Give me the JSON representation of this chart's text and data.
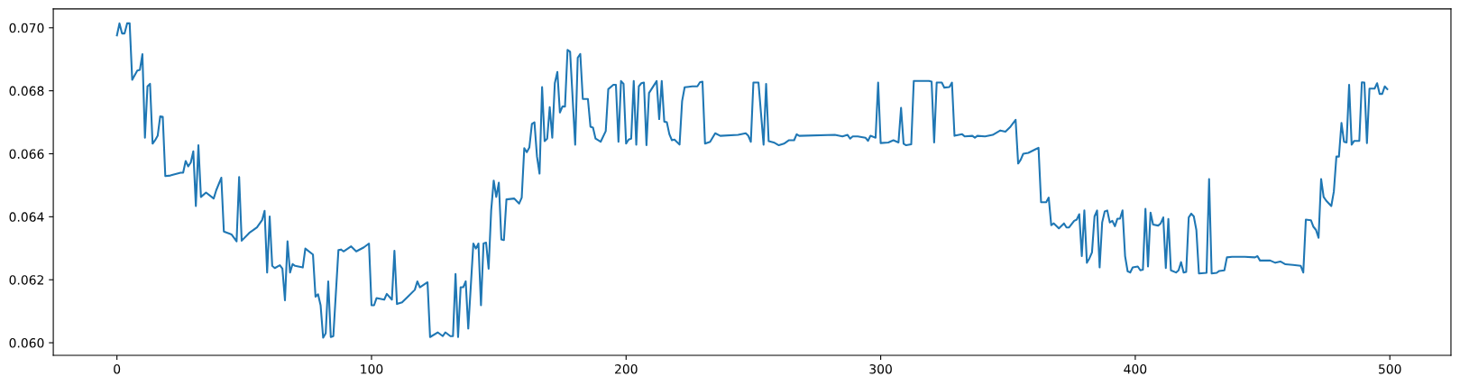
{
  "chart_data": {
    "type": "line",
    "x": [
      0,
      1,
      2,
      3,
      4,
      5,
      6,
      8,
      9,
      10,
      11,
      12,
      13,
      14,
      15,
      16,
      17,
      18,
      19,
      21,
      25,
      26,
      27,
      28,
      29,
      30,
      31,
      32,
      33,
      35,
      38,
      39,
      41,
      42,
      45,
      47,
      48,
      49,
      52,
      55,
      57,
      58,
      59,
      60,
      61,
      62,
      64,
      65,
      66,
      67,
      68,
      69,
      70,
      73,
      74,
      77,
      78,
      79,
      80,
      81,
      82,
      83,
      84,
      85,
      87,
      88,
      89,
      92,
      94,
      97,
      99,
      100,
      101,
      102,
      105,
      106,
      108,
      109,
      110,
      112,
      114,
      117,
      118,
      119,
      122,
      123,
      126,
      128,
      129,
      131,
      132,
      133,
      134,
      135,
      136,
      137,
      138,
      140,
      141,
      142,
      143,
      144,
      145,
      146,
      147,
      148,
      149,
      150,
      151,
      152,
      153,
      156,
      158,
      159,
      160,
      161,
      162,
      163,
      164,
      165,
      166,
      167,
      168,
      169,
      170,
      171,
      172,
      173,
      174,
      175,
      176,
      177,
      178,
      180,
      181,
      182,
      183,
      185,
      186,
      187,
      188,
      190,
      192,
      193,
      195,
      196,
      197,
      198,
      199,
      200,
      201,
      202,
      203,
      204,
      205,
      206,
      207,
      208,
      209,
      212,
      213,
      214,
      215,
      216,
      217,
      218,
      219,
      221,
      222,
      223,
      226,
      228,
      229,
      230,
      231,
      233,
      235,
      237,
      244,
      247,
      248,
      249,
      250,
      252,
      254,
      255,
      256,
      258,
      260,
      262,
      264,
      266,
      267,
      268,
      282,
      285,
      287,
      288,
      289,
      291,
      294,
      295,
      296,
      298,
      299,
      300,
      303,
      305,
      307,
      308,
      309,
      310,
      312,
      313,
      319,
      320,
      321,
      322,
      324,
      325,
      327,
      328,
      329,
      332,
      333,
      336,
      337,
      338,
      341,
      344,
      347,
      349,
      351,
      353,
      354,
      355,
      356,
      358,
      361,
      362,
      363,
      365,
      366,
      367,
      368,
      370,
      372,
      373,
      374,
      376,
      377,
      378,
      379,
      380,
      381,
      382,
      383,
      384,
      385,
      386,
      387,
      388,
      389,
      390,
      391,
      392,
      393,
      394,
      395,
      396,
      397,
      398,
      399,
      401,
      402,
      403,
      404,
      405,
      406,
      407,
      409,
      410,
      411,
      412,
      413,
      414,
      416,
      417,
      418,
      419,
      420,
      421,
      422,
      423,
      424,
      425,
      428,
      429,
      430,
      432,
      433,
      435,
      436,
      438,
      443,
      447,
      448,
      449,
      451,
      453,
      455,
      457,
      459,
      462,
      465,
      466,
      467,
      469,
      470,
      471,
      472,
      473,
      474,
      475,
      477,
      478,
      479,
      480,
      481,
      482,
      483,
      484,
      485,
      486,
      488,
      489,
      490,
      491,
      492,
      494,
      495,
      496,
      497,
      498,
      499
    ],
    "series": [
      {
        "color": "#1f77b4",
        "values": [
          0.06976,
          0.07014,
          0.06982,
          0.06982,
          0.07014,
          0.07014,
          0.06835,
          0.06864,
          0.06866,
          0.06916,
          0.06651,
          0.06814,
          0.06822,
          0.06632,
          0.06643,
          0.06657,
          0.06719,
          0.06717,
          0.06529,
          0.06531,
          0.0654,
          0.0654,
          0.06577,
          0.0656,
          0.06572,
          0.06608,
          0.06434,
          0.06627,
          0.06463,
          0.06477,
          0.06458,
          0.06484,
          0.06524,
          0.06353,
          0.06344,
          0.06322,
          0.06526,
          0.06324,
          0.06349,
          0.06366,
          0.06389,
          0.06419,
          0.06223,
          0.06401,
          0.06244,
          0.06237,
          0.06246,
          0.06235,
          0.06135,
          0.06322,
          0.06223,
          0.0625,
          0.06244,
          0.06239,
          0.06299,
          0.0628,
          0.06146,
          0.06154,
          0.06119,
          0.06016,
          0.0603,
          0.06195,
          0.06018,
          0.06021,
          0.06294,
          0.06296,
          0.0629,
          0.06306,
          0.0629,
          0.06303,
          0.06315,
          0.06119,
          0.06119,
          0.06142,
          0.06137,
          0.06155,
          0.06137,
          0.06292,
          0.06123,
          0.06128,
          0.06144,
          0.06168,
          0.06195,
          0.06176,
          0.06192,
          0.06018,
          0.06033,
          0.06021,
          0.06033,
          0.06021,
          0.06021,
          0.06218,
          0.06018,
          0.06176,
          0.06176,
          0.06195,
          0.06045,
          0.06315,
          0.06299,
          0.06315,
          0.06119,
          0.06315,
          0.06318,
          0.06235,
          0.0642,
          0.06515,
          0.06463,
          0.06508,
          0.06328,
          0.06326,
          0.06455,
          0.06458,
          0.06442,
          0.06461,
          0.06618,
          0.06605,
          0.0662,
          0.06695,
          0.067,
          0.06591,
          0.06537,
          0.06812,
          0.0664,
          0.06648,
          0.06748,
          0.06651,
          0.06824,
          0.0686,
          0.06731,
          0.0675,
          0.0675,
          0.0693,
          0.06924,
          0.06629,
          0.06905,
          0.06917,
          0.06774,
          0.06774,
          0.06686,
          0.06683,
          0.06648,
          0.06638,
          0.06672,
          0.06805,
          0.06819,
          0.06819,
          0.06638,
          0.06831,
          0.06822,
          0.06632,
          0.06645,
          0.06648,
          0.06831,
          0.06629,
          0.06814,
          0.06824,
          0.06826,
          0.06627,
          0.06793,
          0.06831,
          0.0671,
          0.06831,
          0.06702,
          0.067,
          0.06662,
          0.06643,
          0.06645,
          0.06629,
          0.06767,
          0.06811,
          0.06814,
          0.06814,
          0.06827,
          0.06829,
          0.06632,
          0.06638,
          0.06665,
          0.06657,
          0.0666,
          0.06665,
          0.06657,
          0.06638,
          0.06826,
          0.06826,
          0.06629,
          0.06822,
          0.0664,
          0.06636,
          0.06627,
          0.06632,
          0.06643,
          0.06643,
          0.06662,
          0.06657,
          0.0666,
          0.06655,
          0.0666,
          0.06648,
          0.06655,
          0.06655,
          0.06651,
          0.06641,
          0.06657,
          0.06651,
          0.06826,
          0.06634,
          0.06636,
          0.06643,
          0.06636,
          0.06746,
          0.06632,
          0.06627,
          0.0663,
          0.06831,
          0.06831,
          0.06829,
          0.06636,
          0.06826,
          0.06826,
          0.0681,
          0.06812,
          0.06826,
          0.06657,
          0.06662,
          0.06655,
          0.06657,
          0.06651,
          0.06657,
          0.06655,
          0.0666,
          0.06674,
          0.0667,
          0.06686,
          0.06708,
          0.06569,
          0.06581,
          0.066,
          0.06603,
          0.06615,
          0.06619,
          0.06446,
          0.06446,
          0.06461,
          0.06373,
          0.06379,
          0.06363,
          0.06379,
          0.06366,
          0.06366,
          0.06387,
          0.06391,
          0.06408,
          0.06275,
          0.0642,
          0.06254,
          0.06268,
          0.06287,
          0.06401,
          0.0642,
          0.06239,
          0.06382,
          0.06417,
          0.0642,
          0.06382,
          0.06387,
          0.0637,
          0.06394,
          0.06394,
          0.0642,
          0.06275,
          0.06227,
          0.06223,
          0.06239,
          0.06242,
          0.0623,
          0.06232,
          0.06425,
          0.06242,
          0.06413,
          0.06375,
          0.06372,
          0.06379,
          0.06398,
          0.06237,
          0.06393,
          0.0623,
          0.06223,
          0.0623,
          0.06256,
          0.06223,
          0.06225,
          0.06398,
          0.0641,
          0.06401,
          0.06358,
          0.0622,
          0.06222,
          0.0652,
          0.0622,
          0.06222,
          0.06228,
          0.0623,
          0.06271,
          0.06273,
          0.06273,
          0.06271,
          0.06275,
          0.06261,
          0.06261,
          0.06261,
          0.06254,
          0.06258,
          0.06249,
          0.06247,
          0.06244,
          0.06223,
          0.06391,
          0.06389,
          0.06368,
          0.06358,
          0.06333,
          0.0652,
          0.06463,
          0.06451,
          0.06434,
          0.0648,
          0.06591,
          0.06591,
          0.06698,
          0.06638,
          0.06636,
          0.06819,
          0.06629,
          0.06641,
          0.06641,
          0.06827,
          0.06826,
          0.06634,
          0.06807,
          0.06807,
          0.06824,
          0.0679,
          0.0679,
          0.06814,
          0.06805
        ]
      }
    ],
    "xlim": [
      -25,
      524
    ],
    "ylim": [
      0.0596,
      0.0706
    ],
    "xticks": [
      0,
      100,
      200,
      300,
      400,
      500
    ],
    "yticks": [
      {
        "value": 0.06,
        "label": "0.060"
      },
      {
        "value": 0.062,
        "label": "0.062"
      },
      {
        "value": 0.064,
        "label": "0.064"
      },
      {
        "value": 0.066,
        "label": "0.066"
      },
      {
        "value": 0.068,
        "label": "0.068"
      },
      {
        "value": 0.07,
        "label": "0.070"
      }
    ],
    "grid": false
  }
}
